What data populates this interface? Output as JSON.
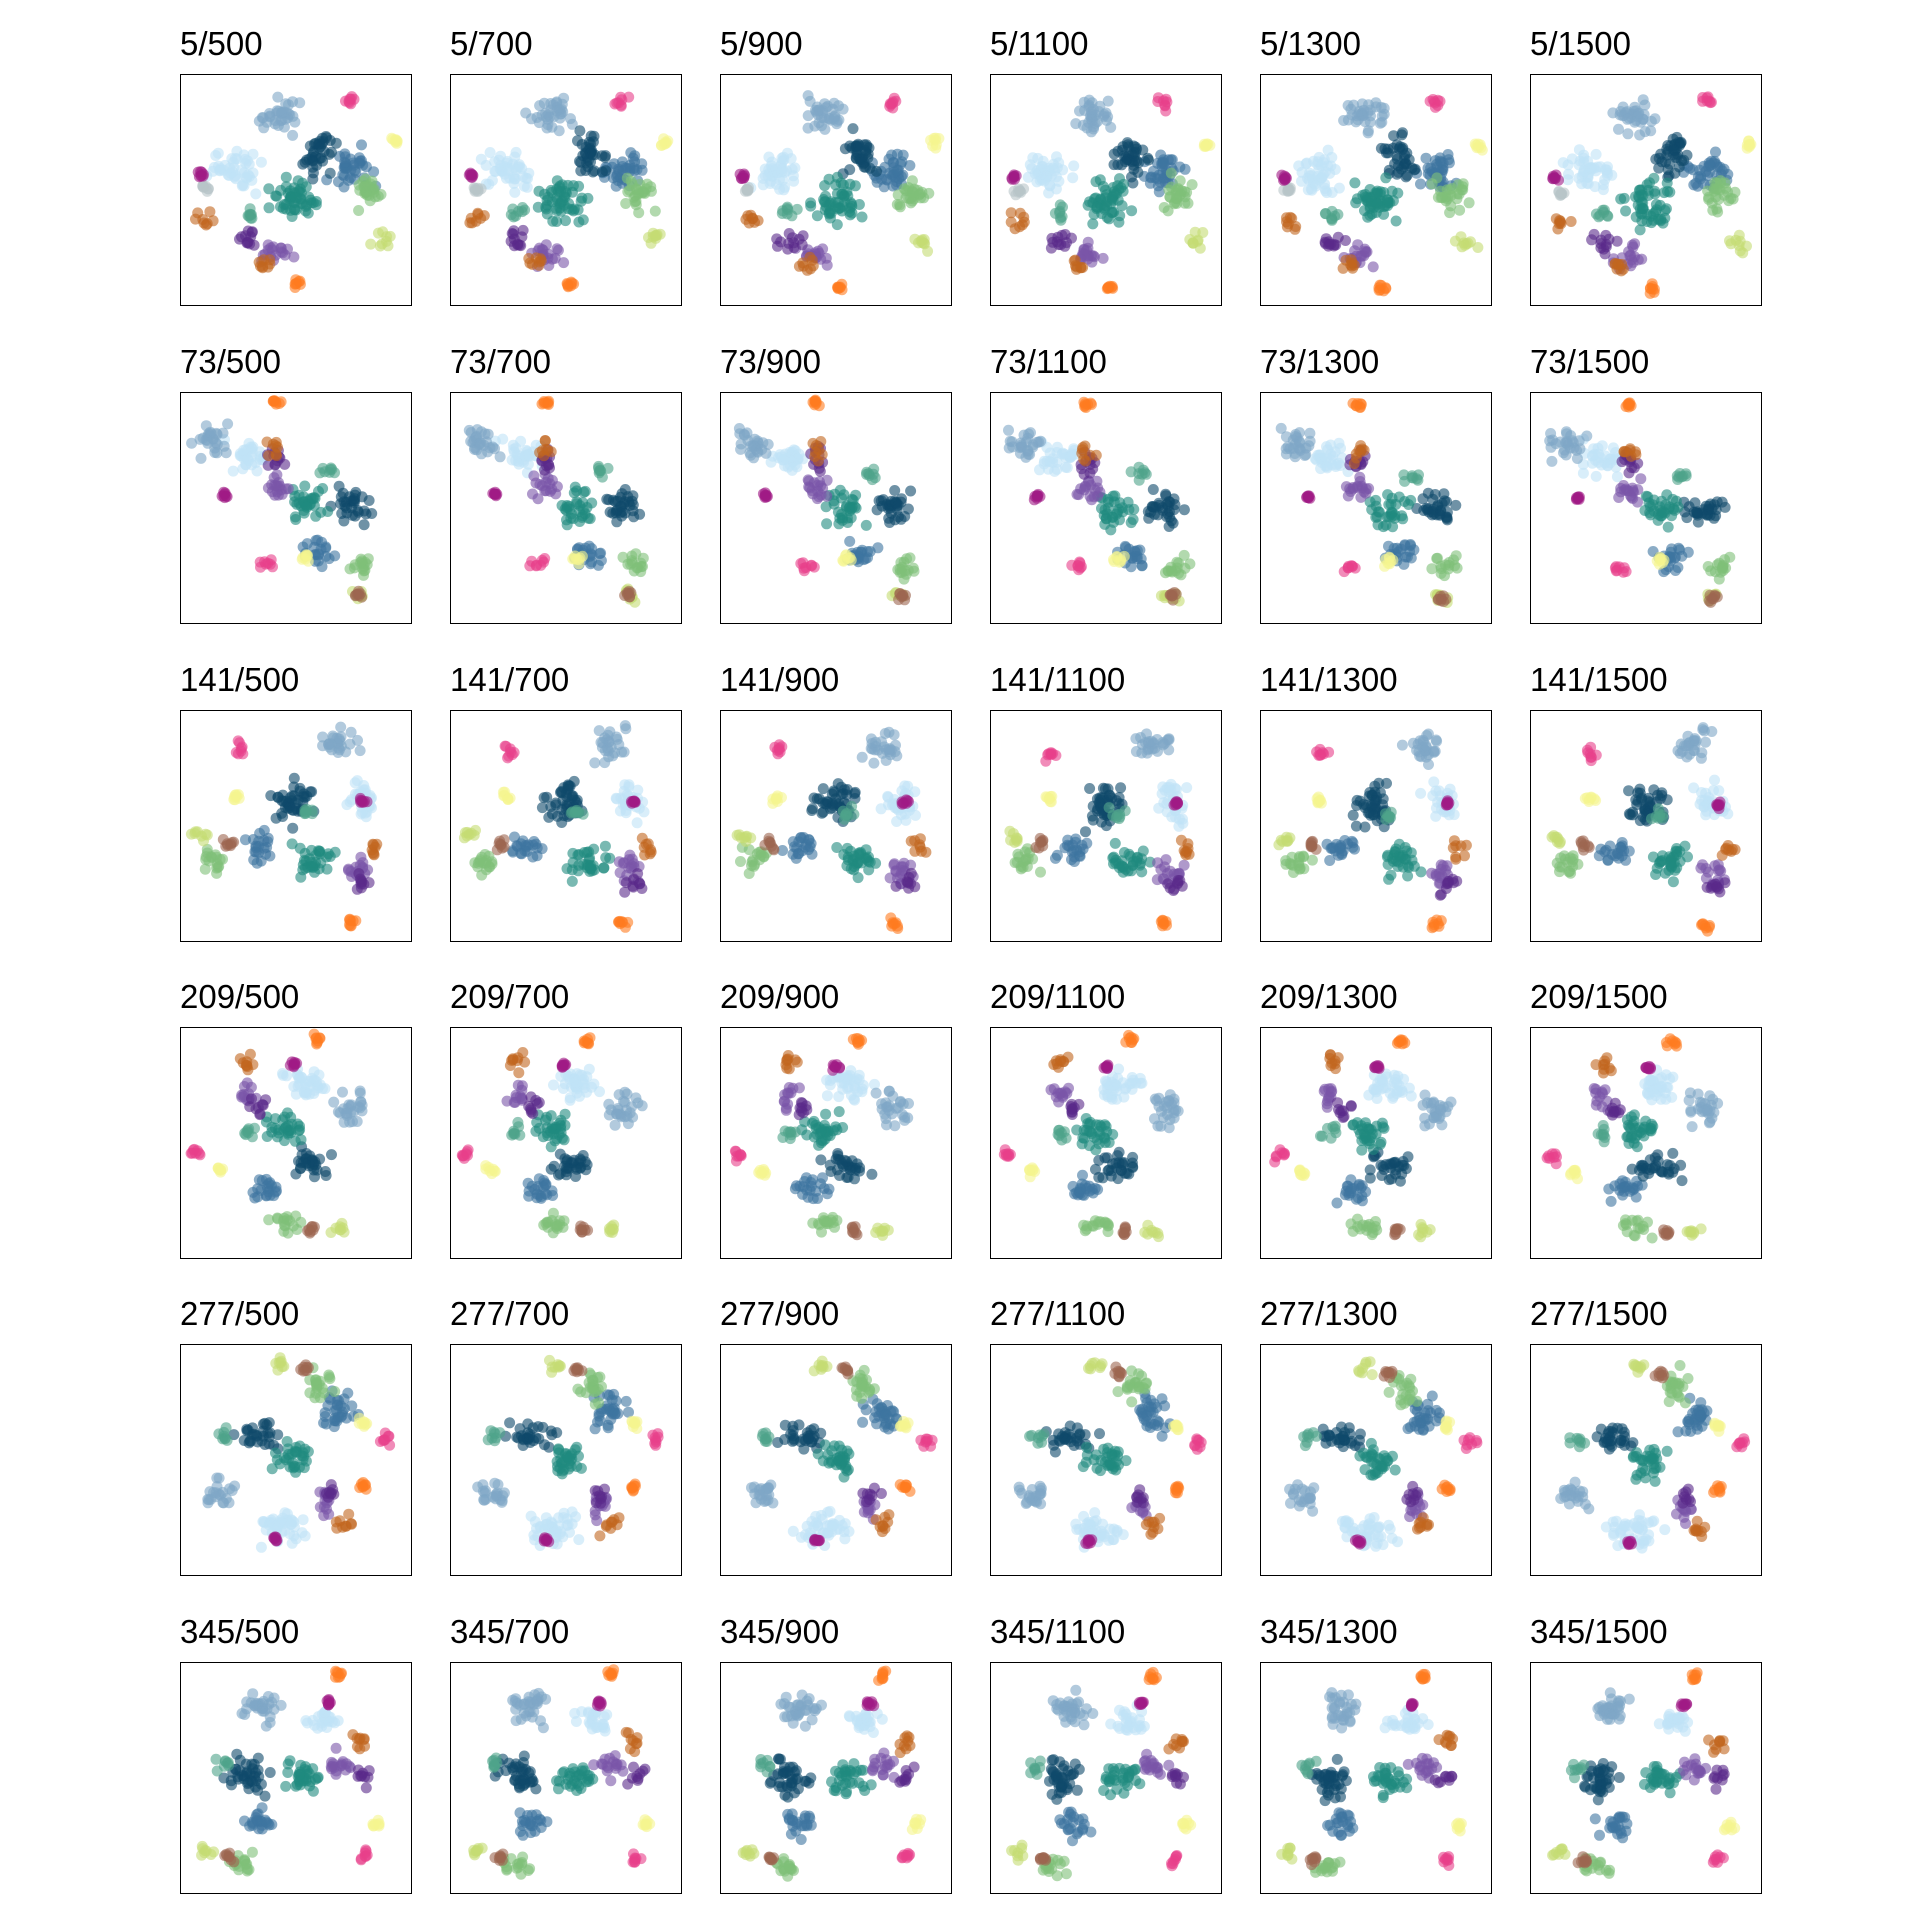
{
  "figure": {
    "row_prefixes": [
      "5",
      "73",
      "141",
      "209",
      "277",
      "345"
    ],
    "col_suffixes": [
      "500",
      "700",
      "900",
      "1100",
      "1300",
      "1500"
    ],
    "titles": [
      [
        "5/500",
        "5/700",
        "5/900",
        "5/1100",
        "5/1300",
        "5/1500"
      ],
      [
        "73/500",
        "73/700",
        "73/900",
        "73/1100",
        "73/1300",
        "73/1500"
      ],
      [
        "141/500",
        "141/700",
        "141/900",
        "141/1100",
        "141/1300",
        "141/1500"
      ],
      [
        "209/500",
        "209/700",
        "209/900",
        "209/1100",
        "209/1300",
        "209/1500"
      ],
      [
        "277/500",
        "277/700",
        "277/900",
        "277/1100",
        "277/1300",
        "277/1500"
      ],
      [
        "345/500",
        "345/700",
        "345/900",
        "345/1100",
        "345/1300",
        "345/1500"
      ]
    ]
  },
  "colors": {
    "steel_blue_light": "#7ea6c7",
    "navy": "#0f4a6a",
    "mid_blue": "#3d75a0",
    "sky_light": "#bfe3f6",
    "teal": "#1f8a7e",
    "purple": "#5a2a8a",
    "violet": "#7a55a8",
    "orange_brown": "#c2651e",
    "orange": "#ff7b1f",
    "pink": "#e8408a",
    "magenta": "#a01a86",
    "green": "#7fbf78",
    "lime": "#c5dc73",
    "yellow_pale": "#f5f58f",
    "brown": "#9c6650",
    "sea_green": "#4ea38a",
    "grey": "#b8c4c8"
  },
  "chart_data": {
    "type": "scatter",
    "layout": "6x6 grid of small multiples",
    "axes": "none (frame only)",
    "grid": false,
    "legend": false,
    "panels_note": "Each panel shows the same embedding of clustered points; title is row/column parameter pair",
    "clusters": [
      {
        "color": "steel_blue_light"
      },
      {
        "color": "navy"
      },
      {
        "color": "mid_blue"
      },
      {
        "color": "sky_light"
      },
      {
        "color": "teal"
      },
      {
        "color": "purple"
      },
      {
        "color": "violet"
      },
      {
        "color": "orange_brown"
      },
      {
        "color": "orange"
      },
      {
        "color": "pink"
      },
      {
        "color": "magenta"
      },
      {
        "color": "green"
      },
      {
        "color": "lime"
      },
      {
        "color": "yellow_pale"
      },
      {
        "color": "brown"
      }
    ],
    "row_layouts": [
      {
        "row": "5",
        "clusters": {
          "steel_blue_light": [
            [
              0.45,
              0.18,
              0.13,
              0.1
            ]
          ],
          "navy": [
            [
              0.6,
              0.35,
              0.1,
              0.14
            ]
          ],
          "mid_blue": [
            [
              0.75,
              0.42,
              0.12,
              0.12
            ]
          ],
          "sky_light": [
            [
              0.25,
              0.42,
              0.14,
              0.12
            ]
          ],
          "teal": [
            [
              0.5,
              0.55,
              0.14,
              0.14
            ]
          ],
          "violet": [
            [
              0.42,
              0.78,
              0.1,
              0.07
            ]
          ],
          "purple": [
            [
              0.3,
              0.72,
              0.08,
              0.06
            ]
          ],
          "orange_brown": [
            [
              0.12,
              0.63,
              0.06,
              0.05
            ],
            [
              0.38,
              0.82,
              0.05,
              0.04
            ]
          ],
          "orange": [
            [
              0.52,
              0.92,
              0.03,
              0.03
            ]
          ],
          "pink": [
            [
              0.75,
              0.12,
              0.04,
              0.05
            ]
          ],
          "green": [
            [
              0.82,
              0.52,
              0.1,
              0.1
            ]
          ],
          "lime": [
            [
              0.88,
              0.72,
              0.06,
              0.06
            ]
          ],
          "yellow_pale": [
            [
              0.93,
              0.3,
              0.03,
              0.03
            ]
          ],
          "magenta": [
            [
              0.1,
              0.44,
              0.02,
              0.02
            ]
          ],
          "sea_green": [
            [
              0.3,
              0.6,
              0.05,
              0.05
            ]
          ],
          "grey": [
            [
              0.12,
              0.5,
              0.03,
              0.03
            ]
          ]
        }
      },
      {
        "row": "73",
        "clusters": {
          "steel_blue_light": [
            [
              0.15,
              0.22,
              0.1,
              0.1
            ]
          ],
          "sky_light": [
            [
              0.3,
              0.28,
              0.12,
              0.1
            ]
          ],
          "navy": [
            [
              0.75,
              0.5,
              0.12,
              0.1
            ]
          ],
          "mid_blue": [
            [
              0.6,
              0.7,
              0.1,
              0.08
            ]
          ],
          "teal": [
            [
              0.55,
              0.5,
              0.12,
              0.1
            ]
          ],
          "violet": [
            [
              0.42,
              0.42,
              0.08,
              0.08
            ]
          ],
          "purple": [
            [
              0.42,
              0.3,
              0.06,
              0.08
            ]
          ],
          "orange_brown": [
            [
              0.42,
              0.26,
              0.05,
              0.06
            ]
          ],
          "orange": [
            [
              0.42,
              0.05,
              0.03,
              0.02
            ]
          ],
          "pink": [
            [
              0.38,
              0.75,
              0.05,
              0.04
            ]
          ],
          "green": [
            [
              0.8,
              0.75,
              0.08,
              0.07
            ]
          ],
          "lime": [
            [
              0.78,
              0.88,
              0.05,
              0.04
            ]
          ],
          "yellow_pale": [
            [
              0.55,
              0.72,
              0.03,
              0.03
            ]
          ],
          "magenta": [
            [
              0.2,
              0.45,
              0.02,
              0.02
            ]
          ],
          "sea_green": [
            [
              0.65,
              0.35,
              0.05,
              0.04
            ]
          ],
          "brown": [
            [
              0.78,
              0.88,
              0.03,
              0.03
            ]
          ]
        }
      },
      {
        "row": "141",
        "clusters": {
          "steel_blue_light": [
            [
              0.7,
              0.15,
              0.1,
              0.1
            ]
          ],
          "navy": [
            [
              0.5,
              0.4,
              0.12,
              0.14
            ]
          ],
          "mid_blue": [
            [
              0.35,
              0.6,
              0.1,
              0.08
            ]
          ],
          "sky_light": [
            [
              0.78,
              0.4,
              0.1,
              0.12
            ]
          ],
          "teal": [
            [
              0.6,
              0.65,
              0.12,
              0.1
            ]
          ],
          "violet": [
            [
              0.78,
              0.7,
              0.08,
              0.08
            ]
          ],
          "purple": [
            [
              0.8,
              0.75,
              0.06,
              0.06
            ]
          ],
          "orange_brown": [
            [
              0.85,
              0.6,
              0.05,
              0.06
            ]
          ],
          "orange": [
            [
              0.75,
              0.92,
              0.03,
              0.03
            ]
          ],
          "pink": [
            [
              0.26,
              0.18,
              0.04,
              0.05
            ]
          ],
          "green": [
            [
              0.15,
              0.65,
              0.08,
              0.08
            ]
          ],
          "lime": [
            [
              0.1,
              0.55,
              0.05,
              0.04
            ]
          ],
          "yellow_pale": [
            [
              0.25,
              0.38,
              0.03,
              0.03
            ]
          ],
          "magenta": [
            [
              0.8,
              0.4,
              0.02,
              0.02
            ]
          ],
          "sea_green": [
            [
              0.55,
              0.45,
              0.05,
              0.05
            ]
          ],
          "brown": [
            [
              0.22,
              0.58,
              0.03,
              0.03
            ]
          ]
        }
      },
      {
        "row": "209",
        "clusters": {
          "steel_blue_light": [
            [
              0.75,
              0.35,
              0.1,
              0.1
            ]
          ],
          "sky_light": [
            [
              0.55,
              0.25,
              0.14,
              0.1
            ]
          ],
          "navy": [
            [
              0.55,
              0.6,
              0.14,
              0.08
            ]
          ],
          "mid_blue": [
            [
              0.4,
              0.7,
              0.1,
              0.08
            ]
          ],
          "teal": [
            [
              0.45,
              0.45,
              0.12,
              0.1
            ]
          ],
          "violet": [
            [
              0.3,
              0.3,
              0.06,
              0.08
            ]
          ],
          "purple": [
            [
              0.35,
              0.35,
              0.06,
              0.06
            ]
          ],
          "orange_brown": [
            [
              0.3,
              0.15,
              0.06,
              0.06
            ]
          ],
          "orange": [
            [
              0.6,
              0.06,
              0.03,
              0.03
            ]
          ],
          "pink": [
            [
              0.08,
              0.55,
              0.04,
              0.04
            ]
          ],
          "green": [
            [
              0.45,
              0.85,
              0.1,
              0.06
            ]
          ],
          "lime": [
            [
              0.7,
              0.88,
              0.05,
              0.04
            ]
          ],
          "yellow_pale": [
            [
              0.18,
              0.62,
              0.03,
              0.03
            ]
          ],
          "magenta": [
            [
              0.5,
              0.17,
              0.02,
              0.02
            ]
          ],
          "sea_green": [
            [
              0.3,
              0.45,
              0.05,
              0.05
            ]
          ],
          "brown": [
            [
              0.58,
              0.88,
              0.03,
              0.03
            ]
          ]
        }
      },
      {
        "row": "277",
        "clusters": {
          "steel_blue_light": [
            [
              0.18,
              0.65,
              0.1,
              0.08
            ]
          ],
          "navy": [
            [
              0.35,
              0.4,
              0.14,
              0.08
            ]
          ],
          "mid_blue": [
            [
              0.7,
              0.3,
              0.1,
              0.12
            ]
          ],
          "sky_light": [
            [
              0.45,
              0.8,
              0.16,
              0.1
            ]
          ],
          "teal": [
            [
              0.5,
              0.5,
              0.12,
              0.1
            ]
          ],
          "violet": [
            [
              0.65,
              0.7,
              0.06,
              0.08
            ]
          ],
          "purple": [
            [
              0.65,
              0.65,
              0.05,
              0.06
            ]
          ],
          "orange_brown": [
            [
              0.7,
              0.78,
              0.06,
              0.06
            ]
          ],
          "orange": [
            [
              0.8,
              0.62,
              0.03,
              0.03
            ]
          ],
          "pink": [
            [
              0.9,
              0.42,
              0.04,
              0.04
            ]
          ],
          "green": [
            [
              0.62,
              0.18,
              0.08,
              0.1
            ]
          ],
          "lime": [
            [
              0.45,
              0.1,
              0.05,
              0.04
            ]
          ],
          "yellow_pale": [
            [
              0.8,
              0.35,
              0.03,
              0.03
            ]
          ],
          "magenta": [
            [
              0.42,
              0.85,
              0.02,
              0.02
            ]
          ],
          "sea_green": [
            [
              0.2,
              0.4,
              0.05,
              0.05
            ]
          ],
          "brown": [
            [
              0.55,
              0.12,
              0.03,
              0.03
            ]
          ]
        }
      },
      {
        "row": "345",
        "clusters": {
          "steel_blue_light": [
            [
              0.35,
              0.2,
              0.12,
              0.1
            ]
          ],
          "sky_light": [
            [
              0.62,
              0.25,
              0.12,
              0.08
            ]
          ],
          "navy": [
            [
              0.3,
              0.5,
              0.12,
              0.12
            ]
          ],
          "mid_blue": [
            [
              0.35,
              0.7,
              0.1,
              0.08
            ]
          ],
          "teal": [
            [
              0.55,
              0.5,
              0.12,
              0.1
            ]
          ],
          "violet": [
            [
              0.7,
              0.45,
              0.08,
              0.08
            ]
          ],
          "purple": [
            [
              0.8,
              0.5,
              0.06,
              0.06
            ]
          ],
          "orange_brown": [
            [
              0.8,
              0.35,
              0.06,
              0.06
            ]
          ],
          "orange": [
            [
              0.7,
              0.06,
              0.03,
              0.03
            ]
          ],
          "pink": [
            [
              0.8,
              0.85,
              0.04,
              0.04
            ]
          ],
          "green": [
            [
              0.28,
              0.88,
              0.1,
              0.06
            ]
          ],
          "lime": [
            [
              0.12,
              0.82,
              0.05,
              0.04
            ]
          ],
          "yellow_pale": [
            [
              0.85,
              0.7,
              0.03,
              0.03
            ]
          ],
          "magenta": [
            [
              0.65,
              0.18,
              0.02,
              0.02
            ]
          ],
          "sea_green": [
            [
              0.2,
              0.45,
              0.05,
              0.05
            ]
          ],
          "brown": [
            [
              0.22,
              0.85,
              0.03,
              0.03
            ]
          ]
        }
      }
    ]
  }
}
